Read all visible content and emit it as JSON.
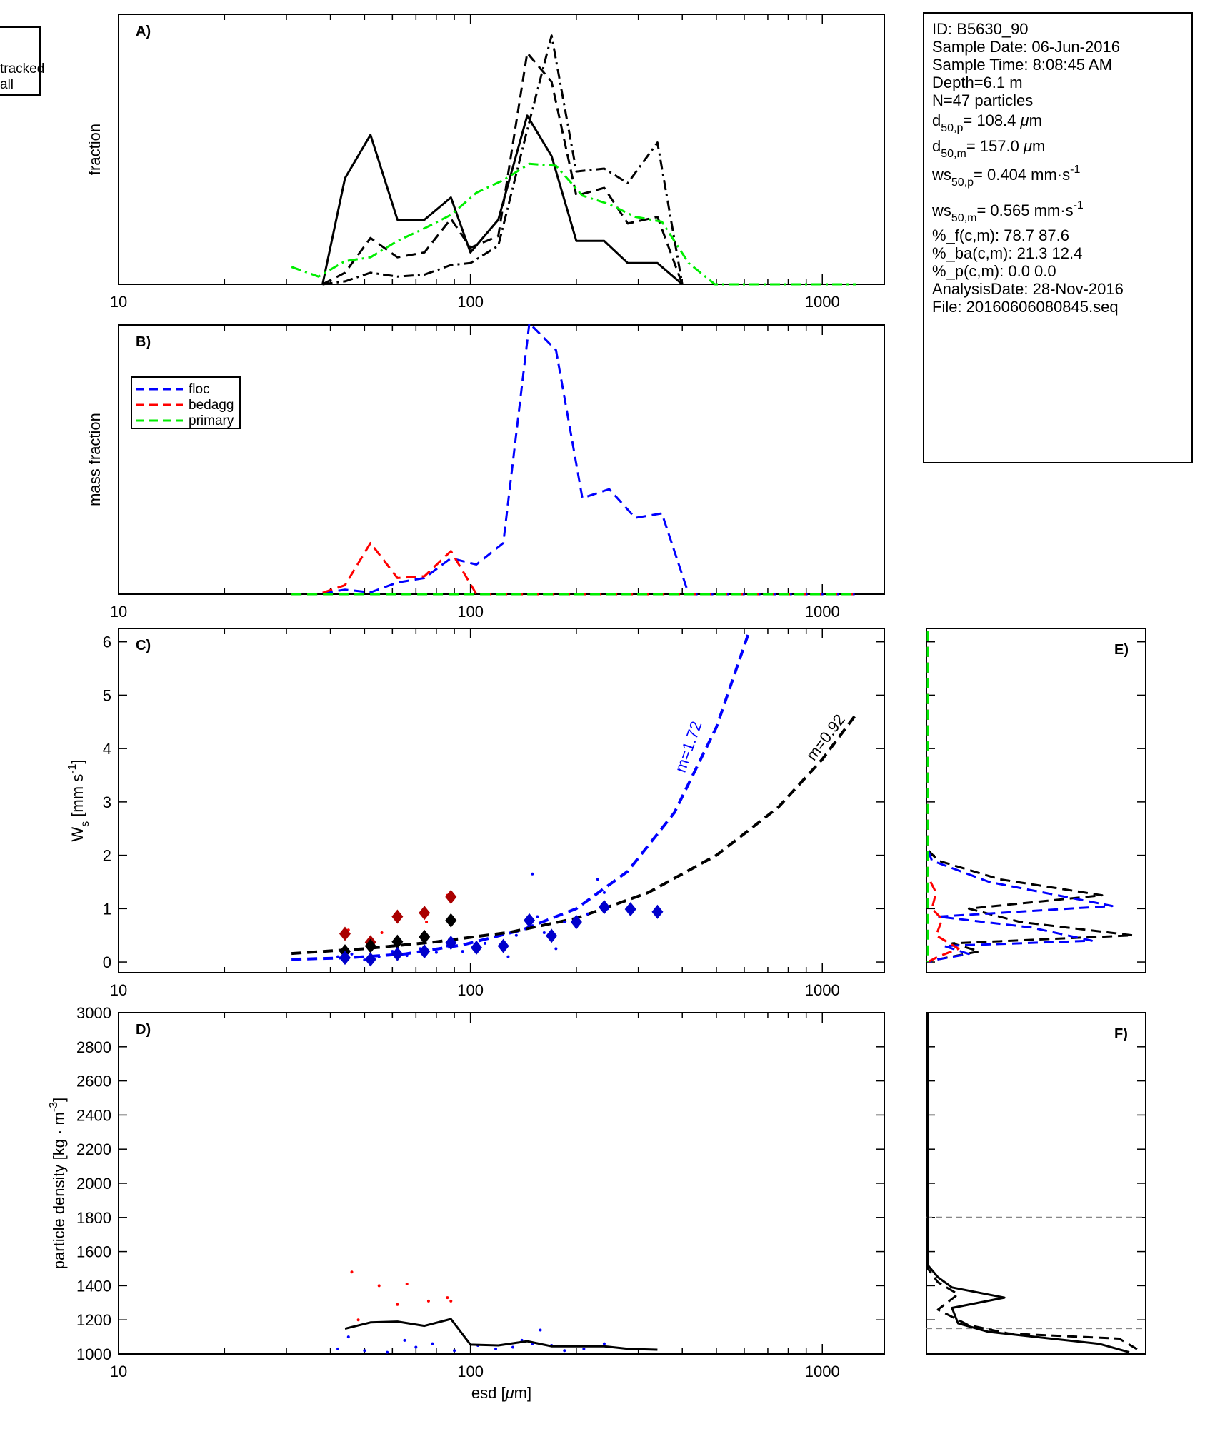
{
  "legend_topleft": [
    "tracked",
    "all"
  ],
  "info_box": {
    "lines": [
      {
        "segments": [
          {
            "t": "ID: B5630_90",
            "s": "n"
          }
        ]
      },
      {
        "segments": [
          {
            "t": "Sample Date: 06-Jun-2016",
            "s": "n"
          }
        ]
      },
      {
        "segments": [
          {
            "t": "Sample Time:  8:08:45 AM",
            "s": "n"
          }
        ]
      },
      {
        "segments": [
          {
            "t": "Depth=6.1 m",
            "s": "n"
          }
        ]
      },
      {
        "segments": [
          {
            "t": "N=47 particles",
            "s": "n"
          }
        ]
      },
      {
        "segments": [
          {
            "t": "d",
            "s": "n"
          },
          {
            "t": "50,p",
            "s": "sub"
          },
          {
            "t": "= 108.4 ",
            "s": "n"
          },
          {
            "t": "μ",
            "s": "it"
          },
          {
            "t": "m",
            "s": "n"
          }
        ]
      },
      {
        "segments": [
          {
            "t": "d",
            "s": "n"
          },
          {
            "t": "50,m",
            "s": "sub"
          },
          {
            "t": "= 157.0 ",
            "s": "n"
          },
          {
            "t": "μ",
            "s": "it"
          },
          {
            "t": "m",
            "s": "n"
          }
        ]
      },
      {
        "segments": [
          {
            "t": "ws",
            "s": "n"
          },
          {
            "t": "50,p",
            "s": "sub"
          },
          {
            "t": "= 0.404 mm·s",
            "s": "n"
          },
          {
            "t": "-1",
            "s": "sup"
          }
        ]
      },
      {
        "segments": [
          {
            "t": "ws",
            "s": "n"
          },
          {
            "t": "50,m",
            "s": "sub"
          },
          {
            "t": "= 0.565 mm·s",
            "s": "n"
          },
          {
            "t": "-1",
            "s": "sup"
          }
        ]
      },
      {
        "segments": [
          {
            "t": "%_f(c,m): 78.7 87.6",
            "s": "n"
          }
        ]
      },
      {
        "segments": [
          {
            "t": "%_ba(c,m): 21.3 12.4",
            "s": "n"
          }
        ]
      },
      {
        "segments": [
          {
            "t": "%_p(c,m): 0.0 0.0",
            "s": "n"
          }
        ]
      },
      {
        "segments": [
          {
            "t": "AnalysisDate: 28-Nov-2016",
            "s": "n"
          }
        ]
      },
      {
        "segments": [
          {
            "t": "File: 20160606080845.seq",
            "s": "n"
          }
        ]
      }
    ]
  },
  "chart_data": [
    {
      "panel": "A)",
      "type": "line",
      "ylabel": "fraction",
      "x_scale": "log",
      "xlim": [
        10,
        1500
      ],
      "x_ticks": [
        10,
        100,
        1000
      ],
      "ylim": [
        0,
        0.28
      ],
      "series": [
        {
          "style": "solid",
          "color": "#000000",
          "x": [
            38,
            44,
            52,
            62,
            74,
            88,
            100,
            120,
            145,
            170,
            200,
            240,
            280,
            340,
            400
          ],
          "y": [
            0,
            0.11,
            0.155,
            0.067,
            0.067,
            0.09,
            0.033,
            0.067,
            0.175,
            0.133,
            0.045,
            0.045,
            0.022,
            0.022,
            0
          ]
        },
        {
          "style": "dashed",
          "color": "#000000",
          "x": [
            38,
            44,
            52,
            62,
            74,
            88,
            100,
            120,
            145,
            170,
            200,
            240,
            280,
            340,
            400
          ],
          "y": [
            0,
            0.012,
            0.048,
            0.028,
            0.033,
            0.068,
            0.038,
            0.05,
            0.24,
            0.21,
            0.092,
            0.1,
            0.063,
            0.07,
            0
          ]
        },
        {
          "style": "dashdot",
          "color": "#000000",
          "x": [
            38,
            44,
            52,
            62,
            74,
            88,
            100,
            120,
            145,
            170,
            200,
            240,
            280,
            340,
            400
          ],
          "y": [
            0,
            0.003,
            0.012,
            0.008,
            0.01,
            0.02,
            0.022,
            0.04,
            0.16,
            0.258,
            0.117,
            0.12,
            0.105,
            0.147,
            0
          ]
        },
        {
          "style": "dashdot",
          "color": "#00ee00",
          "x": [
            31,
            37,
            44,
            52,
            62,
            74,
            88,
            104,
            124,
            147,
            175,
            208,
            248,
            294,
            350,
            417,
            495,
            1250
          ],
          "y": [
            0.018,
            0.008,
            0.024,
            0.028,
            0.045,
            0.058,
            0.072,
            0.095,
            0.108,
            0.125,
            0.123,
            0.092,
            0.083,
            0.07,
            0.065,
            0.022,
            0,
            0
          ]
        }
      ]
    },
    {
      "panel": "B)",
      "type": "line",
      "ylabel": "mass fraction",
      "x_scale": "log",
      "xlim": [
        10,
        1500
      ],
      "x_ticks": [
        10,
        100,
        1000
      ],
      "ylim": [
        0,
        0.3
      ],
      "legend": [
        "floc",
        "bedagg",
        "primary"
      ],
      "series": [
        {
          "name": "floc",
          "style": "dashed",
          "color": "#0000ff",
          "x": [
            31,
            37,
            44,
            52,
            62,
            74,
            88,
            104,
            124,
            147,
            175,
            208,
            248,
            294,
            350,
            417,
            495,
            1250
          ],
          "y": [
            0,
            0,
            0.005,
            0.002,
            0.013,
            0.018,
            0.04,
            0.033,
            0.057,
            0.302,
            0.272,
            0.107,
            0.117,
            0.085,
            0.09,
            0,
            0,
            0
          ]
        },
        {
          "name": "bedagg",
          "style": "dashed",
          "color": "#ff0000",
          "x": [
            31,
            37,
            44,
            52,
            62,
            74,
            88,
            104,
            124,
            147,
            175,
            208,
            248,
            294,
            350,
            417,
            495,
            1250
          ],
          "y": [
            0,
            0,
            0.01,
            0.057,
            0.018,
            0.02,
            0.048,
            0,
            0,
            0,
            0,
            0,
            0,
            0,
            0,
            0,
            0,
            0
          ]
        },
        {
          "name": "primary",
          "style": "dashed",
          "color": "#00ee00",
          "x": [
            31,
            1250
          ],
          "y": [
            0,
            0
          ]
        }
      ]
    },
    {
      "panel": "C)",
      "type": "scatter",
      "ylabel": "Ws [mm s-1]",
      "x_scale": "log",
      "xlim": [
        10,
        1500
      ],
      "x_ticks": [
        10,
        100,
        1000
      ],
      "ylim": [
        -0.2,
        6.25
      ],
      "y_ticks": [
        0,
        1,
        2,
        3,
        4,
        5,
        6
      ],
      "fit_curves": [
        {
          "label": "m=1.72",
          "color": "#0000ff",
          "x": [
            31,
            45,
            65,
            95,
            140,
            200,
            280,
            380,
            500,
            620
          ],
          "y": [
            0.05,
            0.08,
            0.15,
            0.32,
            0.6,
            1.0,
            1.7,
            2.8,
            4.4,
            6.2
          ]
        },
        {
          "label": "m=0.92",
          "color": "#000000",
          "x": [
            31,
            50,
            80,
            130,
            200,
            320,
            500,
            750,
            1000,
            1250
          ],
          "y": [
            0.16,
            0.25,
            0.38,
            0.56,
            0.82,
            1.3,
            2.0,
            2.9,
            3.8,
            4.65
          ]
        }
      ],
      "diamonds": [
        {
          "color": "#aa0000",
          "x": [
            44,
            52,
            62,
            74,
            88
          ],
          "y": [
            0.53,
            0.37,
            0.85,
            0.92,
            1.22
          ]
        },
        {
          "color": "#000000",
          "x": [
            44,
            52,
            62,
            74,
            88
          ],
          "y": [
            0.2,
            0.3,
            0.38,
            0.47,
            0.78
          ]
        },
        {
          "color": "#0000cc",
          "x": [
            44,
            52,
            62,
            74,
            88,
            104,
            124,
            147,
            170,
            200,
            240,
            285,
            340
          ],
          "y": [
            0.08,
            0.05,
            0.15,
            0.2,
            0.36,
            0.27,
            0.3,
            0.78,
            0.49,
            0.75,
            1.03,
            0.99,
            0.94
          ]
        }
      ],
      "points": [
        {
          "color": "#0000ff",
          "x": [
            42,
            46,
            50,
            55,
            60,
            66,
            72,
            80,
            86,
            95,
            110,
            128,
            135,
            150,
            155,
            162,
            175,
            185,
            200,
            215,
            230,
            240,
            245
          ],
          "y": [
            0.1,
            0.15,
            0.04,
            0.1,
            0.2,
            0.12,
            0.25,
            0.18,
            0.3,
            0.2,
            0.35,
            0.1,
            0.5,
            1.65,
            0.85,
            0.55,
            0.25,
            0.75,
            0.65,
            0.9,
            1.55,
            1.3,
            1.0
          ]
        },
        {
          "color": "#ff0000",
          "x": [
            45,
            53,
            56,
            62,
            75,
            86
          ],
          "y": [
            0.6,
            0.3,
            0.55,
            0.9,
            0.75,
            1.25
          ]
        }
      ]
    },
    {
      "panel": "D)",
      "type": "scatter",
      "ylabel": "particle density [kg · m-3]",
      "xlabel": "esd [μm]",
      "x_scale": "log",
      "xlim": [
        10,
        1500
      ],
      "x_ticks": [
        10,
        100,
        1000
      ],
      "ylim": [
        1000,
        3000
      ],
      "y_ticks": [
        1000,
        1200,
        1400,
        1600,
        1800,
        2000,
        2200,
        2400,
        2600,
        2800,
        3000
      ],
      "line": {
        "color": "#000000",
        "x": [
          44,
          52,
          62,
          74,
          88,
          100,
          120,
          145,
          170,
          200,
          240,
          280,
          340
        ],
        "y": [
          1148,
          1185,
          1190,
          1165,
          1205,
          1055,
          1050,
          1075,
          1045,
          1045,
          1045,
          1030,
          1025
        ]
      },
      "points": [
        {
          "color": "#ff0000",
          "x": [
            46,
            48,
            55,
            62,
            66,
            76,
            86,
            88
          ],
          "y": [
            1480,
            1200,
            1400,
            1290,
            1410,
            1310,
            1330,
            1310
          ]
        },
        {
          "color": "#0000ff",
          "x": [
            42,
            45,
            50,
            58,
            65,
            70,
            78,
            90,
            105,
            118,
            132,
            140,
            150,
            158,
            170,
            185,
            210,
            240
          ],
          "y": [
            1030,
            1100,
            1020,
            1010,
            1080,
            1040,
            1060,
            1020,
            1050,
            1030,
            1040,
            1080,
            1060,
            1140,
            1050,
            1020,
            1030,
            1060
          ]
        }
      ]
    },
    {
      "panel": "E)",
      "type": "line",
      "ylim": [
        -0.2,
        6.25
      ],
      "series": [
        {
          "style": "dashed",
          "color": "#000000",
          "x": [
            0,
            0,
            0.05,
            0.35,
            0.85,
            0.2,
            0.45,
            1.0,
            0.12,
            0.25,
            0.05,
            0
          ],
          "y": [
            6.2,
            2.1,
            1.9,
            1.55,
            1.25,
            1.0,
            0.75,
            0.5,
            0.35,
            0.2,
            0.05,
            0
          ]
        },
        {
          "style": "dashed",
          "color": "#0000ff",
          "x": [
            0,
            0,
            0.02,
            0.3,
            0.9,
            0.05,
            0.5,
            0.8,
            0.08,
            0.2,
            0.05,
            0
          ],
          "y": [
            6.2,
            2.1,
            1.9,
            1.5,
            1.05,
            0.85,
            0.65,
            0.4,
            0.3,
            0.15,
            0.05,
            0
          ]
        },
        {
          "style": "dashed",
          "color": "#ff0000",
          "x": [
            0,
            0,
            0.04,
            0.02,
            0.07,
            0.04,
            0.15,
            0.05,
            0
          ],
          "y": [
            6.2,
            1.6,
            1.3,
            1.0,
            0.8,
            0.5,
            0.25,
            0.1,
            0
          ]
        },
        {
          "style": "dashed",
          "color": "#00ee00",
          "x": [
            0,
            0
          ],
          "y": [
            6.2,
            0
          ]
        }
      ]
    },
    {
      "panel": "F)",
      "type": "line",
      "ylim": [
        1000,
        3000
      ],
      "hlines": [
        1800,
        1150
      ],
      "series": [
        {
          "style": "solid",
          "color": "#000000",
          "x": [
            0,
            0,
            0.05,
            0.12,
            0.38,
            0.12,
            0.15,
            0.3,
            0.85,
            1.0
          ],
          "y": [
            3000,
            1520,
            1450,
            1390,
            1330,
            1270,
            1180,
            1130,
            1060,
            1010
          ]
        },
        {
          "style": "dashed",
          "color": "#000000",
          "x": [
            0,
            0,
            0.05,
            0.15,
            0.05,
            0.2,
            0.4,
            0.95,
            1.05
          ],
          "y": [
            3000,
            1500,
            1420,
            1350,
            1260,
            1170,
            1120,
            1090,
            1020
          ]
        }
      ]
    }
  ]
}
